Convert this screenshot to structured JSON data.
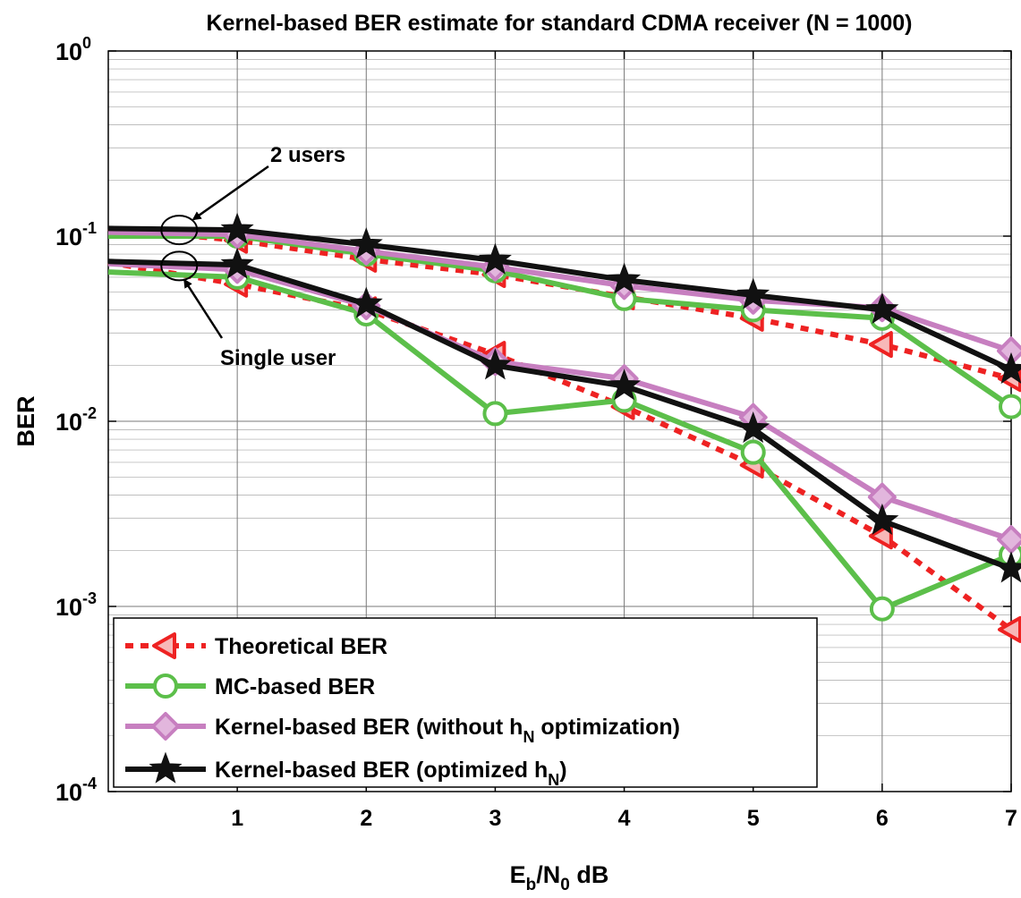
{
  "chart_data": {
    "type": "line",
    "title": "Kernel-based BER estimate for standard CDMA receiver (N = 1000)",
    "xlabel": {
      "base": "E",
      "sub1": "b",
      "mid": "/N",
      "sub2": "0",
      "tail": " dB"
    },
    "ylabel": "BER",
    "xlim": [
      0,
      7
    ],
    "ylim": [
      0.0001,
      1
    ],
    "yscale": "log",
    "grid": true,
    "x_ticks": [
      "1",
      "2",
      "3",
      "4",
      "5",
      "6",
      "7"
    ],
    "y_ticks": [
      {
        "base": "10",
        "exp": "0",
        "value": 1
      },
      {
        "base": "10",
        "exp": "-1",
        "value": 0.1
      },
      {
        "base": "10",
        "exp": "-2",
        "value": 0.01
      },
      {
        "base": "10",
        "exp": "-3",
        "value": 0.001
      },
      {
        "base": "10",
        "exp": "-4",
        "value": 0.0001
      }
    ],
    "legend_position": "bottom-left",
    "legend": [
      {
        "parts": [
          [
            "Theoretical BER",
            false
          ]
        ]
      },
      {
        "parts": [
          [
            "MC-based BER",
            false
          ]
        ]
      },
      {
        "parts": [
          [
            "Kernel-based BER (without h",
            false
          ],
          [
            "N",
            true
          ],
          [
            " optimization)",
            false
          ]
        ]
      },
      {
        "parts": [
          [
            "Kernel-based BER (optimized h",
            false
          ],
          [
            "N",
            true
          ],
          [
            ")",
            false
          ]
        ]
      }
    ],
    "annotations": [
      {
        "text": "2 users"
      },
      {
        "text": "Single user"
      }
    ],
    "series": [
      {
        "group": "2 users",
        "legend_index": 0,
        "color": "#ee2222",
        "dash": true,
        "marker": "triangle-left",
        "x": [
          0,
          1,
          2,
          3,
          4,
          5,
          6,
          7
        ],
        "y": [
          0.11,
          0.095,
          0.075,
          0.062,
          0.047,
          0.036,
          0.026,
          0.017
        ]
      },
      {
        "group": "2 users",
        "legend_index": 1,
        "color": "#5cbf4a",
        "dash": false,
        "marker": "circle",
        "x": [
          0,
          1,
          2,
          3,
          4,
          5,
          6,
          7
        ],
        "y": [
          0.1,
          0.1,
          0.08,
          0.065,
          0.046,
          0.04,
          0.036,
          0.012
        ]
      },
      {
        "group": "2 users",
        "legend_index": 2,
        "color": "#c77fc0",
        "dash": false,
        "marker": "diamond",
        "x": [
          0,
          1,
          2,
          3,
          4,
          5,
          6,
          7
        ],
        "y": [
          0.105,
          0.102,
          0.083,
          0.068,
          0.054,
          0.045,
          0.041,
          0.024
        ]
      },
      {
        "group": "2 users",
        "legend_index": 3,
        "color": "#111111",
        "dash": false,
        "marker": "star",
        "x": [
          0,
          1,
          2,
          3,
          4,
          5,
          6,
          7
        ],
        "y": [
          0.11,
          0.108,
          0.09,
          0.074,
          0.058,
          0.048,
          0.04,
          0.019
        ]
      },
      {
        "group": "Single user",
        "legend_index": 0,
        "color": "#ee2222",
        "dash": true,
        "marker": "triangle-left",
        "x": [
          0,
          1,
          2,
          3,
          4,
          5,
          6,
          7
        ],
        "y": [
          0.072,
          0.055,
          0.04,
          0.023,
          0.012,
          0.0058,
          0.0024,
          0.00075
        ]
      },
      {
        "group": "Single user",
        "legend_index": 1,
        "color": "#5cbf4a",
        "dash": false,
        "marker": "circle",
        "x": [
          0,
          1,
          2,
          3,
          4,
          5,
          6,
          7
        ],
        "y": [
          0.064,
          0.06,
          0.038,
          0.011,
          0.013,
          0.0068,
          0.00097,
          0.0019
        ]
      },
      {
        "group": "Single user",
        "legend_index": 2,
        "color": "#c77fc0",
        "dash": false,
        "marker": "diamond",
        "x": [
          0,
          1,
          2,
          3,
          4,
          5,
          6,
          7
        ],
        "y": [
          0.071,
          0.066,
          0.042,
          0.021,
          0.017,
          0.0105,
          0.0039,
          0.0023
        ]
      },
      {
        "group": "Single user",
        "legend_index": 3,
        "color": "#111111",
        "dash": false,
        "marker": "star",
        "x": [
          0,
          1,
          2,
          3,
          4,
          5,
          6,
          7
        ],
        "y": [
          0.073,
          0.07,
          0.043,
          0.02,
          0.0155,
          0.0091,
          0.0029,
          0.0016
        ]
      }
    ]
  }
}
